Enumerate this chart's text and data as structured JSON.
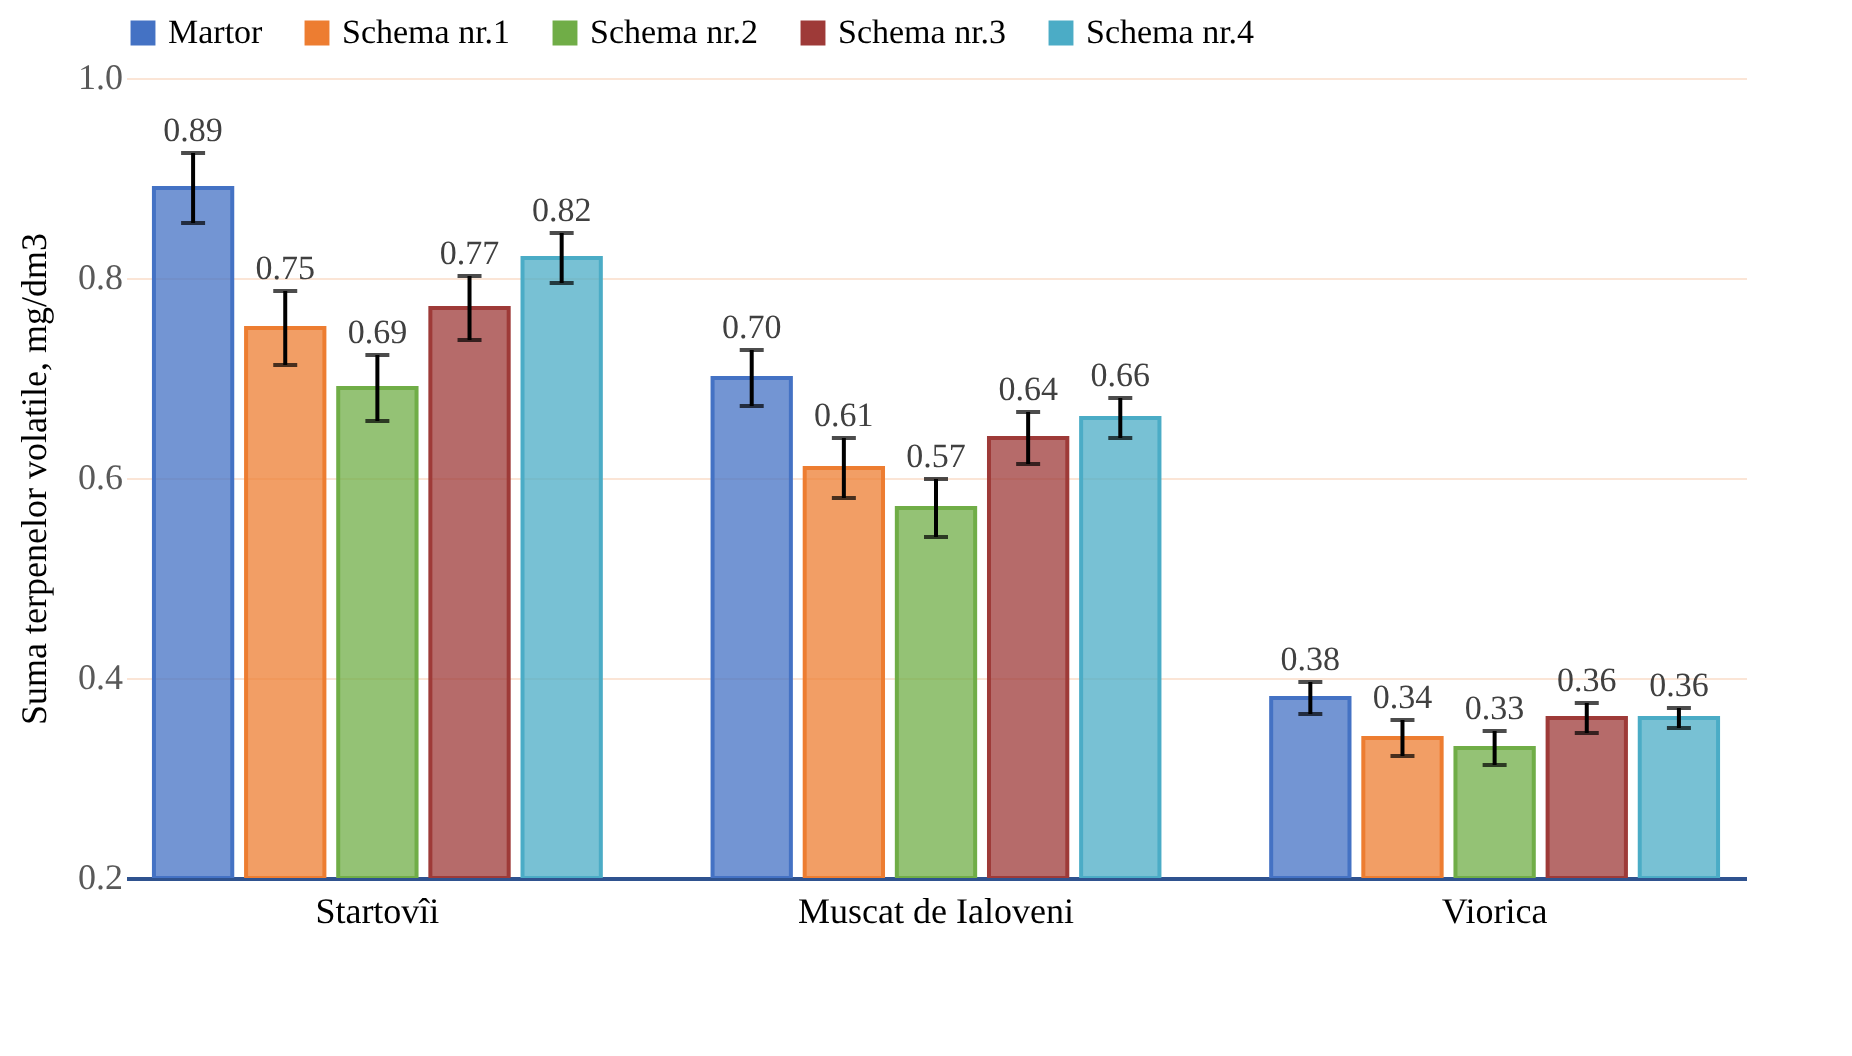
{
  "chart_data": {
    "type": "bar",
    "ylabel": "Suma terpenelor volatile, mg/dm3",
    "categories": [
      "Startovîi",
      "Muscat de Ialoveni",
      "Viorica"
    ],
    "series": [
      {
        "name": "Martor",
        "color": "#4472c4",
        "values": [
          0.89,
          0.7,
          0.38
        ],
        "errors": [
          0.035,
          0.028,
          0.016
        ],
        "value_labels": [
          "0.89",
          "0.70",
          "0.38"
        ]
      },
      {
        "name": "Schema nr.1",
        "color": "#ed7d31",
        "values": [
          0.75,
          0.61,
          0.34
        ],
        "errors": [
          0.037,
          0.03,
          0.018
        ],
        "value_labels": [
          "0.75",
          "0.61",
          "0.34"
        ]
      },
      {
        "name": "Schema nr.2",
        "color": "#70ad47",
        "values": [
          0.69,
          0.57,
          0.33
        ],
        "errors": [
          0.033,
          0.029,
          0.017
        ],
        "value_labels": [
          "0.69",
          "0.57",
          "0.33"
        ]
      },
      {
        "name": "Schema nr.3",
        "color": "#9e3a38",
        "values": [
          0.77,
          0.64,
          0.36
        ],
        "errors": [
          0.032,
          0.026,
          0.015
        ],
        "value_labels": [
          "0.77",
          "0.64",
          "0.36"
        ]
      },
      {
        "name": "Schema nr.4",
        "color": "#4bacc6",
        "values": [
          0.82,
          0.66,
          0.36
        ],
        "errors": [
          0.025,
          0.02,
          0.01
        ],
        "value_labels": [
          "0.82",
          "0.66",
          "0.36"
        ]
      }
    ],
    "ylim": [
      0.2,
      1.0
    ],
    "yticks": [
      {
        "value": 0.2,
        "label": "0.2"
      },
      {
        "value": 0.4,
        "label": "0.4"
      },
      {
        "value": 0.6,
        "label": "0.6"
      },
      {
        "value": 0.8,
        "label": "0.8"
      },
      {
        "value": 1.0,
        "label": "1.0"
      }
    ],
    "grid": "y",
    "legend": "top"
  }
}
